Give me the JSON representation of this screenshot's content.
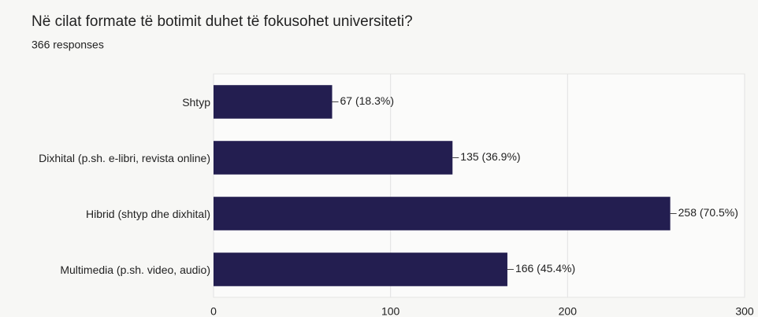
{
  "chart_data": {
    "type": "bar",
    "orientation": "horizontal",
    "title": "Në cilat formate të botimit duhet të fokusohet universiteti?",
    "subtitle": "366 responses",
    "categories": [
      "Shtyp",
      "Dixhital (p.sh. e-libri, revista online)",
      "Hibrid (shtyp dhe dixhital)",
      "Multimedia (p.sh. video, audio)"
    ],
    "values": [
      67,
      135,
      258,
      166
    ],
    "value_labels": [
      "67 (18.3%)",
      "135 (36.9%)",
      "258 (70.5%)",
      "166 (45.4%)"
    ],
    "color": "#231e50",
    "xlim": [
      0,
      300
    ],
    "xticks": [
      0,
      100,
      200,
      300
    ],
    "grid": true
  }
}
